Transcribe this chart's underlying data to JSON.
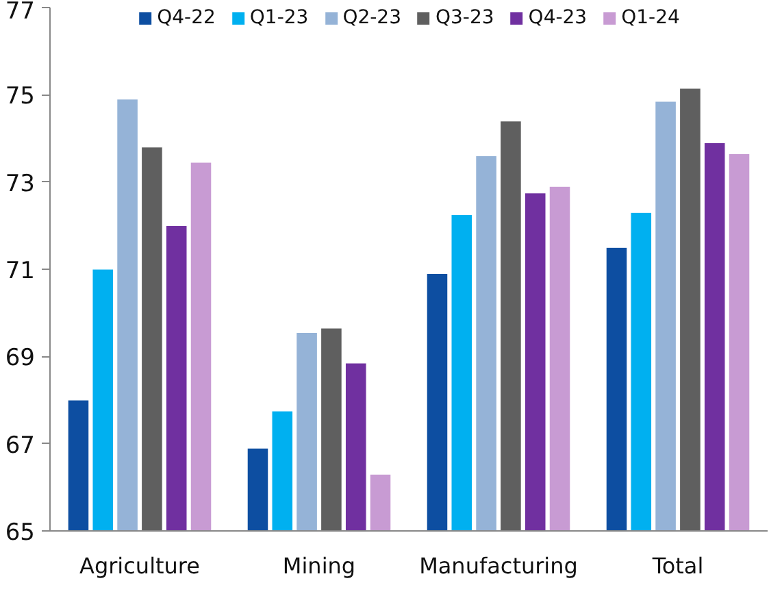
{
  "chart_data": {
    "type": "bar",
    "categories": [
      "Agriculture",
      "Mining",
      "Manufacturing",
      "Total"
    ],
    "series": [
      {
        "name": "Q4-22",
        "color": "#0d4ea1",
        "values": [
          68.0,
          66.9,
          70.9,
          71.5
        ]
      },
      {
        "name": "Q1-23",
        "color": "#00b0f0",
        "values": [
          71.0,
          67.75,
          72.25,
          72.3
        ]
      },
      {
        "name": "Q2-23",
        "color": "#95b3d7",
        "values": [
          74.9,
          69.55,
          73.6,
          74.85
        ]
      },
      {
        "name": "Q3-23",
        "color": "#5f5f5f",
        "values": [
          73.8,
          69.65,
          74.4,
          75.15
        ]
      },
      {
        "name": "Q4-23",
        "color": "#7030a0",
        "values": [
          72.0,
          68.85,
          72.75,
          73.9
        ]
      },
      {
        "name": "Q1-24",
        "color": "#c89bd3",
        "values": [
          73.45,
          66.3,
          72.9,
          73.65
        ]
      }
    ],
    "ylim": [
      65,
      77
    ],
    "yticks": [
      65,
      67,
      69,
      71,
      73,
      75,
      77
    ],
    "grid": false,
    "legend": "top"
  }
}
